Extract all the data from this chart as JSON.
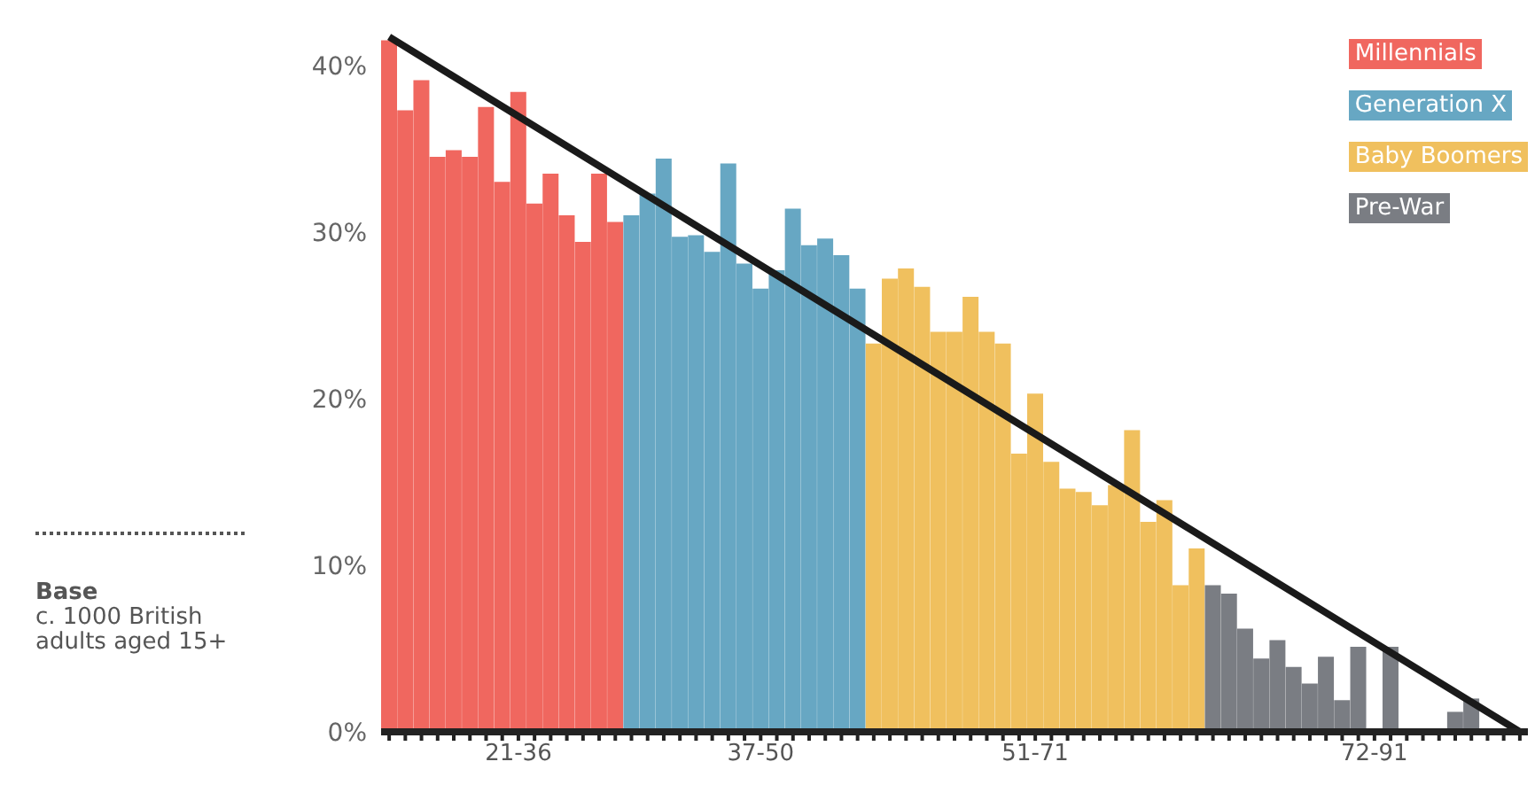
{
  "chart_data": {
    "type": "bar",
    "stacked": true,
    "categories": [
      null,
      null,
      null,
      null,
      null,
      null,
      null,
      null,
      "21-36",
      null,
      null,
      null,
      null,
      null,
      null,
      null,
      null,
      null,
      null,
      null,
      null,
      null,
      null,
      "37-50",
      null,
      null,
      null,
      null,
      null,
      null,
      null,
      null,
      null,
      null,
      null,
      null,
      null,
      null,
      null,
      null,
      "51-71",
      null,
      null,
      null,
      null,
      null,
      null,
      null,
      null,
      null,
      null,
      null,
      null,
      null,
      null,
      null,
      null,
      null,
      null,
      null,
      null,
      "72-91",
      null,
      null,
      null,
      null,
      null,
      null,
      null,
      null,
      null
    ],
    "series": [
      {
        "name": "Millennials",
        "color": "#f0675f",
        "values": [
          41.5,
          37.3,
          39.1,
          34.5,
          34.9,
          34.5,
          37.5,
          33.0,
          38.4,
          31.7,
          33.5,
          31.0,
          29.4,
          33.5,
          30.6,
          null,
          null,
          null,
          null,
          null,
          null,
          null,
          null,
          null,
          null,
          null,
          null,
          null,
          null,
          null,
          null,
          null,
          null,
          null,
          null,
          null,
          null,
          null,
          null,
          null,
          null,
          null,
          null,
          null,
          null,
          null,
          null,
          null,
          null,
          null,
          null,
          null,
          null,
          null,
          null,
          null,
          null,
          null,
          null,
          null,
          null,
          null,
          null,
          null,
          null,
          null,
          null,
          null,
          null,
          null,
          null
        ]
      },
      {
        "name": "Generation X",
        "color": "#67a7c3",
        "values": [
          null,
          null,
          null,
          null,
          null,
          null,
          null,
          null,
          null,
          null,
          null,
          null,
          null,
          null,
          null,
          31.0,
          32.3,
          34.4,
          29.7,
          29.8,
          28.8,
          34.1,
          28.1,
          26.6,
          27.7,
          31.4,
          29.2,
          29.6,
          28.6,
          26.6,
          null,
          null,
          null,
          null,
          null,
          null,
          null,
          null,
          null,
          null,
          null,
          null,
          null,
          null,
          null,
          null,
          null,
          null,
          null,
          null,
          null,
          null,
          null,
          null,
          null,
          null,
          null,
          null,
          null,
          null,
          null,
          null,
          null,
          null,
          null,
          null,
          null,
          null,
          null,
          null,
          null
        ]
      },
      {
        "name": "Baby Boomers",
        "color": "#f0c05e",
        "values": [
          null,
          null,
          null,
          null,
          null,
          null,
          null,
          null,
          null,
          null,
          null,
          null,
          null,
          null,
          null,
          null,
          null,
          null,
          null,
          null,
          null,
          null,
          null,
          null,
          null,
          null,
          null,
          null,
          null,
          null,
          23.3,
          27.2,
          27.8,
          26.7,
          24.0,
          24.0,
          26.1,
          24.0,
          23.3,
          16.7,
          20.3,
          16.2,
          14.6,
          14.4,
          13.6,
          14.8,
          18.1,
          12.6,
          13.9,
          8.8,
          11.0,
          null,
          null,
          null,
          null,
          null,
          null,
          null,
          null,
          null,
          null,
          null,
          null,
          null,
          null,
          null,
          null,
          null,
          null,
          null,
          null
        ]
      },
      {
        "name": "Pre-War",
        "color": "#7a7d83",
        "values": [
          null,
          null,
          null,
          null,
          null,
          null,
          null,
          null,
          null,
          null,
          null,
          null,
          null,
          null,
          null,
          null,
          null,
          null,
          null,
          null,
          null,
          null,
          null,
          null,
          null,
          null,
          null,
          null,
          null,
          null,
          null,
          null,
          null,
          null,
          null,
          null,
          null,
          null,
          null,
          null,
          null,
          null,
          null,
          null,
          null,
          null,
          null,
          null,
          null,
          null,
          null,
          8.8,
          8.3,
          6.2,
          4.4,
          5.5,
          3.9,
          2.9,
          4.5,
          1.9,
          5.1,
          0,
          5.1,
          0,
          0,
          0,
          1.2,
          2.0,
          0,
          0,
          0
        ]
      },
      {
        "type": "line",
        "color": "#1a1a1a",
        "values": [
          41.7,
          null,
          null,
          null,
          null,
          null,
          null,
          null,
          null,
          null,
          null,
          null,
          null,
          null,
          null,
          null,
          null,
          null,
          null,
          null,
          null,
          null,
          null,
          null,
          null,
          null,
          null,
          null,
          null,
          null,
          null,
          null,
          null,
          null,
          null,
          null,
          null,
          null,
          null,
          null,
          null,
          null,
          null,
          null,
          null,
          null,
          null,
          null,
          null,
          null,
          null,
          null,
          null,
          null,
          null,
          null,
          null,
          null,
          null,
          null,
          null,
          null,
          null,
          null,
          null,
          null,
          null,
          null,
          null,
          null,
          0
        ]
      }
    ],
    "ylim": [
      0,
      42
    ],
    "yticks": [
      {
        "value": 0,
        "label": "0%"
      },
      {
        "value": 10,
        "label": "10%"
      },
      {
        "value": 20,
        "label": "20%"
      },
      {
        "value": 30,
        "label": "30%"
      },
      {
        "value": 40,
        "label": "40%"
      }
    ],
    "legend": "top right",
    "annotations": [
      "Base",
      "c. 1000 British adults aged 15+"
    ]
  }
}
